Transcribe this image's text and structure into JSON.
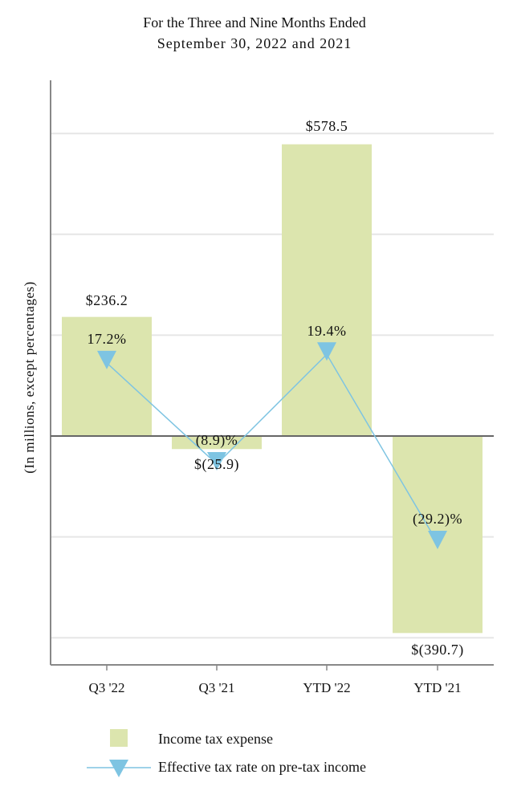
{
  "chart_data": {
    "type": "bar",
    "title": "For the Three and Nine Months Ended",
    "subtitle": "September 30, 2022 and 2021",
    "ylabel": "(In millions, except percentages)",
    "xlabel": "",
    "categories": [
      "Q3 '22",
      "Q3 '21",
      "YTD '22",
      "YTD '21"
    ],
    "ylim": [
      -450,
      700
    ],
    "gridlines": [
      -400,
      -200,
      0,
      200,
      400,
      600
    ],
    "grid": true,
    "legend_position": "bottom",
    "series": [
      {
        "name": "Income tax expense",
        "type": "bar",
        "color": "#dce5ae",
        "values": [
          236.2,
          -25.9,
          578.5,
          -390.7
        ],
        "labels": [
          "$236.2",
          "$(25.9)",
          "$578.5",
          "$(390.7)"
        ]
      },
      {
        "name": "Effective tax rate on pre-tax income",
        "type": "line",
        "marker": "triangle-down",
        "color": "#7ec4e2",
        "values": [
          17.2,
          -8.9,
          19.4,
          -29.2
        ],
        "labels": [
          "17.2%",
          "(8.9)%",
          "19.4%",
          "(29.2)%"
        ]
      }
    ]
  }
}
